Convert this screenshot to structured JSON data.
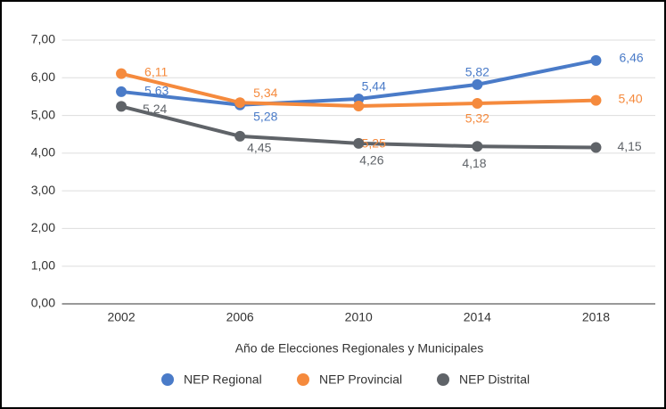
{
  "chart_data": {
    "type": "line",
    "categories": [
      "2002",
      "2006",
      "2010",
      "2014",
      "2018"
    ],
    "series": [
      {
        "name": "NEP Regional",
        "color": "#4a7bc8",
        "values": [
          5.63,
          5.28,
          5.44,
          5.82,
          6.46
        ],
        "value_labels": [
          "5,63",
          "5,28",
          "5,44",
          "5,82",
          "6,46"
        ]
      },
      {
        "name": "NEP Provincial",
        "color": "#f58a3d",
        "values": [
          6.11,
          5.34,
          5.25,
          5.32,
          5.4
        ],
        "value_labels": [
          "6,11",
          "5,34",
          "5,25",
          "5,32",
          "5,40"
        ]
      },
      {
        "name": "NEP Distrital",
        "color": "#5f6368",
        "values": [
          5.24,
          4.45,
          4.26,
          4.18,
          4.15
        ],
        "value_labels": [
          "5,24",
          "4,45",
          "4,26",
          "4,18",
          "4,15"
        ]
      }
    ],
    "ylim": [
      0,
      7
    ],
    "yticks": [
      {
        "value": 0,
        "label": "0,00"
      },
      {
        "value": 1,
        "label": "1,00"
      },
      {
        "value": 2,
        "label": "2,00"
      },
      {
        "value": 3,
        "label": "3,00"
      },
      {
        "value": 4,
        "label": "4,00"
      },
      {
        "value": 5,
        "label": "5,00"
      },
      {
        "value": 6,
        "label": "6,00"
      },
      {
        "value": 7,
        "label": "7,00"
      }
    ],
    "grid": true,
    "xlabel": "Año de Elecciones Regionales y Municipales",
    "legend": "bottom"
  }
}
